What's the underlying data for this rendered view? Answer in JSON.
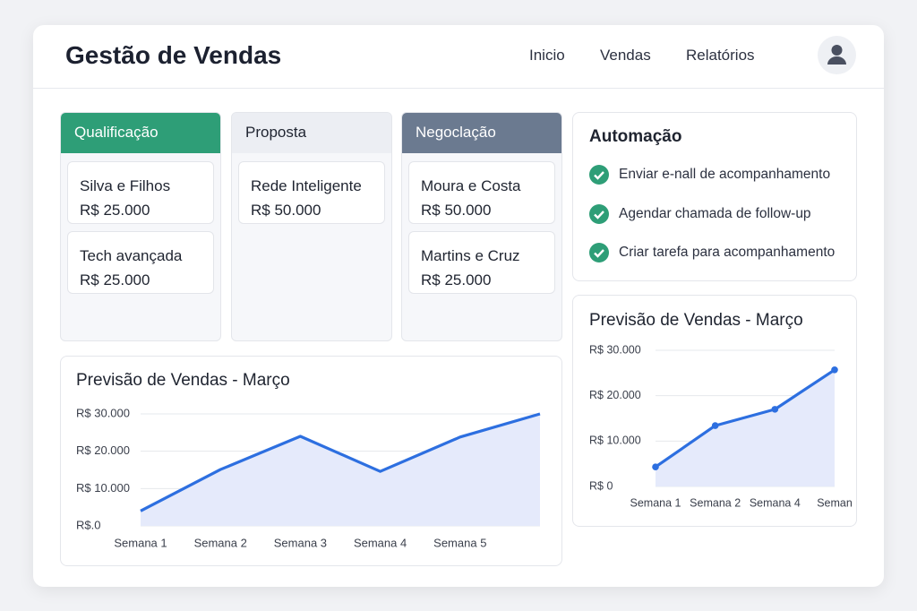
{
  "header": {
    "title": "Gestão de Vendas",
    "nav": [
      "Inicio",
      "Vendas",
      "Relatórios"
    ]
  },
  "kanban": [
    {
      "title": "Qualificação",
      "cards": [
        {
          "name": "Silva e Filhos",
          "value": "R$ 25.000"
        },
        {
          "name": "Tech avançada",
          "value": "R$ 25.000"
        }
      ]
    },
    {
      "title": "Proposta",
      "cards": [
        {
          "name": "Rede Inteligente",
          "value": "R$ 50.000"
        }
      ]
    },
    {
      "title": "Negoclação",
      "cards": [
        {
          "name": "Moura e Costa",
          "value": "R$ 50.000"
        },
        {
          "name": "Martins e Cruz",
          "value": "R$ 25.000"
        }
      ]
    }
  ],
  "automation": {
    "title": "Automação",
    "items": [
      "Enviar e-nall de acompanhamento",
      "Agendar chamada de follow-up",
      "Criar tarefa para acompanhamento"
    ]
  },
  "chart_data": [
    {
      "type": "line",
      "title": "Previsão de Vendas - Março",
      "categories": [
        "Semana 1",
        "Semana 2",
        "Semana 3",
        "Semana 4",
        "Semana 5",
        null
      ],
      "values": [
        4000,
        15100,
        24000,
        14600,
        23800,
        30000
      ],
      "color": "#2d6fe0",
      "area_color": "#e5eafb",
      "markers": false,
      "grid": true,
      "ylim": [
        0,
        30000
      ],
      "yticks": [
        {
          "value": 0,
          "label": "R$.0"
        },
        {
          "value": 10000,
          "label": "R$ 10.000"
        },
        {
          "value": 20000,
          "label": "R$ 20.000"
        },
        {
          "value": 30000,
          "label": "R$ 30.000"
        }
      ]
    },
    {
      "type": "line",
      "title": "Previsão de Vendas - Março",
      "categories": [
        "Semana 1",
        "Semana 2",
        "Semana 4",
        "Seman"
      ],
      "values": [
        4300,
        13400,
        17000,
        25700
      ],
      "color": "#2d6fe0",
      "area_color": "#e5eafb",
      "markers": true,
      "grid": true,
      "ylim": [
        0,
        30000
      ],
      "yticks": [
        {
          "value": 0,
          "label": "R$ 0"
        },
        {
          "value": 10000,
          "label": "R$ 10.000"
        },
        {
          "value": 20000,
          "label": "R$ 20.000"
        },
        {
          "value": 30000,
          "label": "R$ 30.000"
        }
      ]
    }
  ]
}
